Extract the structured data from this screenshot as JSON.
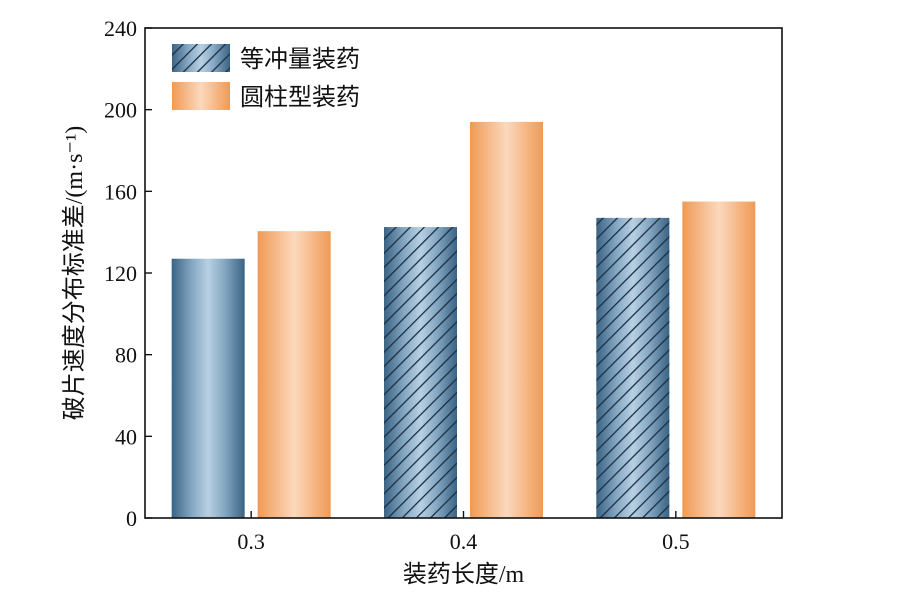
{
  "chart_data": {
    "type": "bar",
    "categories": [
      "0.3",
      "0.4",
      "0.5"
    ],
    "series": [
      {
        "name": "等冲量装药",
        "values": [
          127,
          142.5,
          147
        ],
        "color": "#3a6384"
      },
      {
        "name": "圆柱型装药",
        "values": [
          140.5,
          194,
          155
        ],
        "color": "#f09a54"
      }
    ],
    "xlabel": "装药长度/m",
    "ylabel": "破片速度分布标准差/(m·s⁻¹)",
    "ylim": [
      0,
      240
    ],
    "yticks": [
      "0",
      "40",
      "80",
      "120",
      "160",
      "200",
      "240"
    ],
    "grid": false,
    "legend_position": "top-left"
  }
}
